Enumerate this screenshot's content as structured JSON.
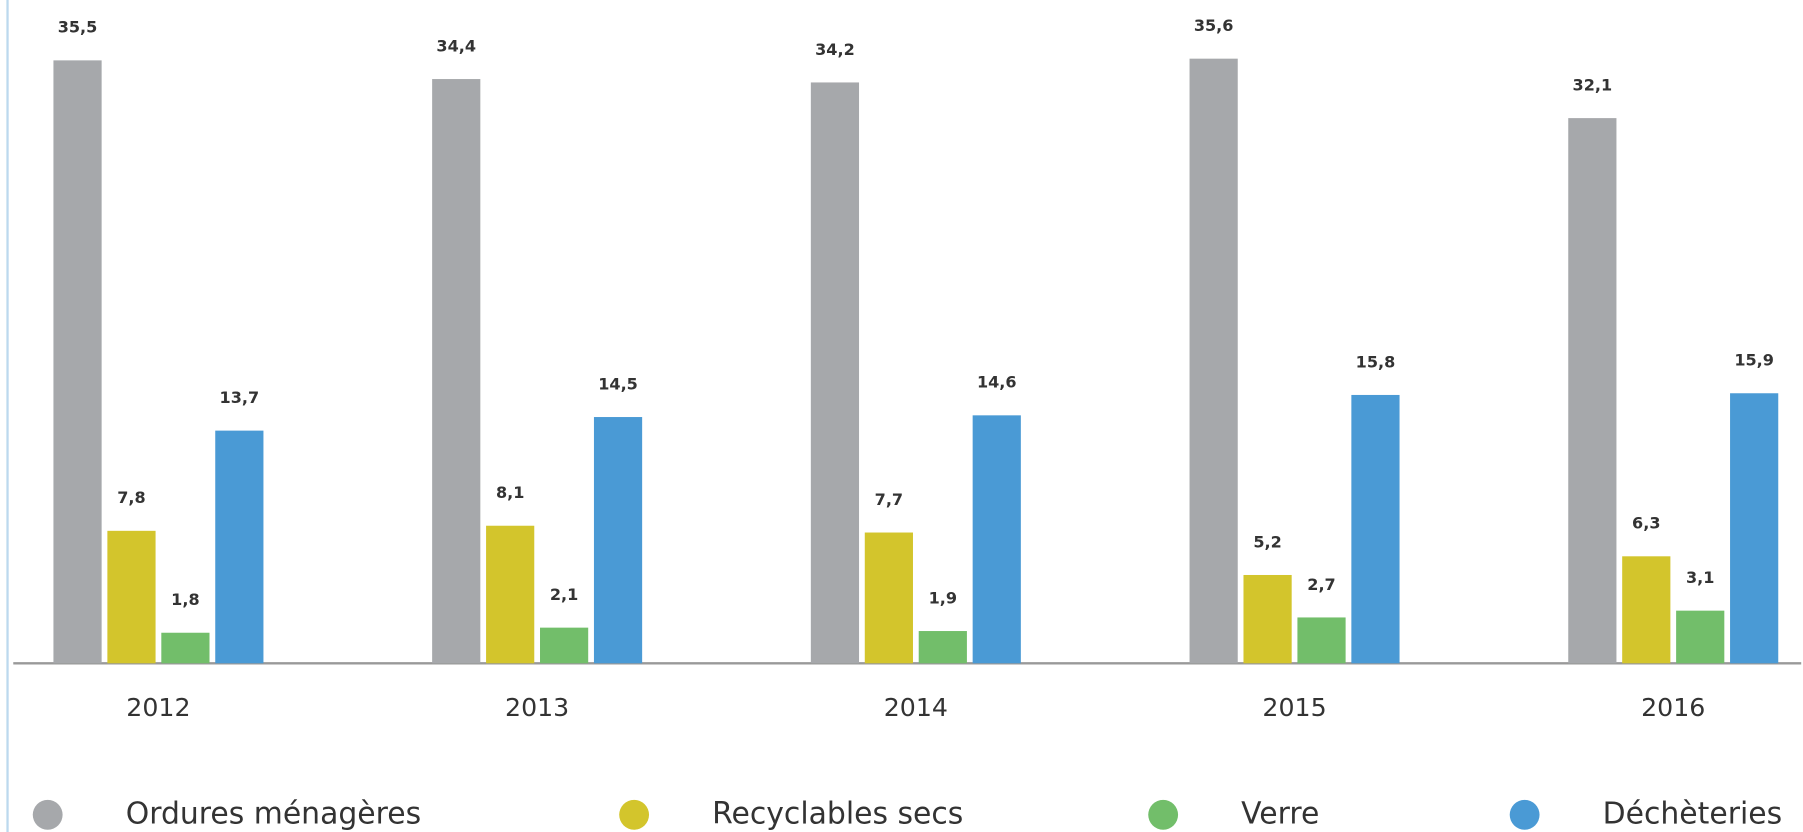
{
  "chart_data": {
    "type": "bar",
    "categories": [
      "2012",
      "2013",
      "2014",
      "2015",
      "2016"
    ],
    "series": [
      {
        "name": "Ordures ménagères",
        "color": "#a6a8ab",
        "values": [
          35.5,
          34.4,
          34.2,
          35.6,
          32.1
        ],
        "value_labels": [
          "35,5",
          "34,4",
          "34,2",
          "35,6",
          "32,1"
        ]
      },
      {
        "name": "Recyclables secs",
        "color": "#d3c52c",
        "values": [
          7.8,
          8.1,
          7.7,
          5.2,
          6.3
        ],
        "value_labels": [
          "7,8",
          "8,1",
          "7,7",
          "5,2",
          "6,3"
        ]
      },
      {
        "name": "Verre",
        "color": "#72be6a",
        "values": [
          1.8,
          2.1,
          1.9,
          2.7,
          3.1
        ],
        "value_labels": [
          "1,8",
          "2,1",
          "1,9",
          "2,7",
          "3,1"
        ]
      },
      {
        "name": "Déchèteries",
        "color": "#4a9ad5",
        "values": [
          13.7,
          14.5,
          14.6,
          15.8,
          15.9
        ],
        "value_labels": [
          "13,7",
          "14,5",
          "14,6",
          "15,8",
          "15,9"
        ]
      }
    ]
  }
}
